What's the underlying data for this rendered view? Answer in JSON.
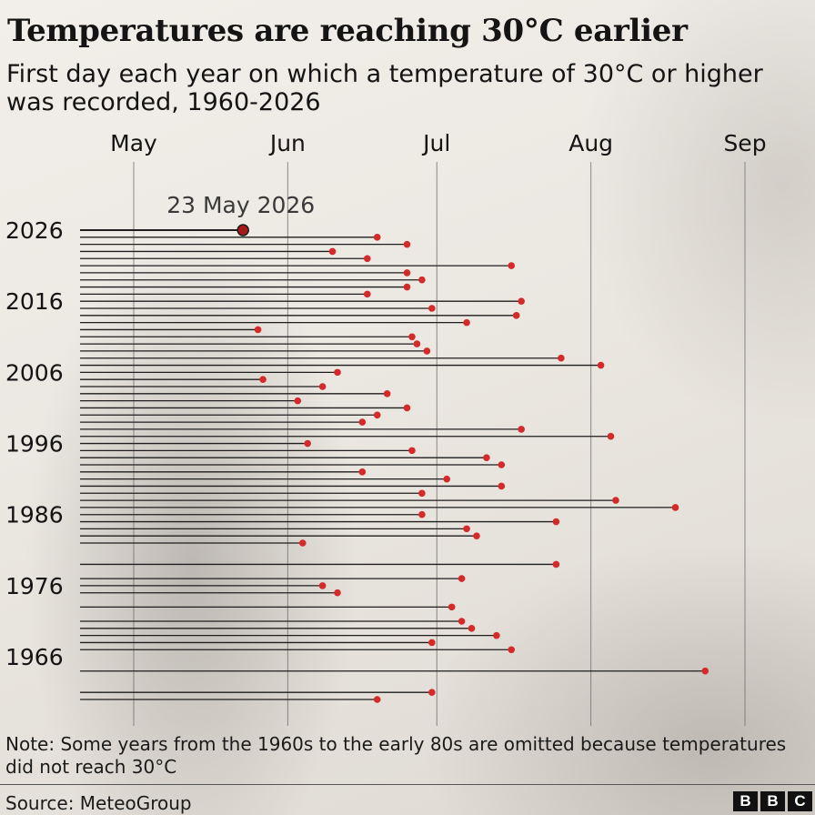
{
  "header": {
    "title": "Temperatures are reaching 30°C earlier",
    "subtitle": "First day each year on which a temperature of 30°C or higher was recorded, 1960-2026"
  },
  "footer": {
    "note": "Note: Some years from the 1960s to the early 80s are omitted because temperatures did not reach 30°C",
    "source": "Source: MeteoGroup",
    "logo_letters": [
      "B",
      "B",
      "C"
    ]
  },
  "chart_data": {
    "type": "lollipop",
    "orientation": "horizontal",
    "x_axis": {
      "type": "date",
      "range": [
        "04-14",
        "09-03"
      ],
      "ticks": [
        {
          "label": "May",
          "date": "05-01"
        },
        {
          "label": "Jun",
          "date": "06-01"
        },
        {
          "label": "Jul",
          "date": "07-01"
        },
        {
          "label": "Aug",
          "date": "08-01"
        },
        {
          "label": "Sep",
          "date": "09-01"
        }
      ]
    },
    "y_axis": {
      "range": [
        1960,
        2026
      ],
      "tick_labels": [
        "2026",
        "2016",
        "2006",
        "1996",
        "1986",
        "1976",
        "1966"
      ]
    },
    "annotation": {
      "label": "23 May 2026",
      "year": 2026,
      "date": "05-23"
    },
    "colors": {
      "dot": "#d42a2a",
      "highlight_dot": "#a31a1a",
      "line": "#1e1e1e",
      "grid": "#6a6a6a"
    },
    "points": [
      {
        "year": 2026,
        "date": "05-23"
      },
      {
        "year": 2025,
        "date": "06-19"
      },
      {
        "year": 2024,
        "date": "06-25"
      },
      {
        "year": 2023,
        "date": "06-10"
      },
      {
        "year": 2022,
        "date": "06-17"
      },
      {
        "year": 2021,
        "date": "07-16"
      },
      {
        "year": 2020,
        "date": "06-25"
      },
      {
        "year": 2019,
        "date": "06-28"
      },
      {
        "year": 2018,
        "date": "06-25"
      },
      {
        "year": 2017,
        "date": "06-17"
      },
      {
        "year": 2016,
        "date": "07-18"
      },
      {
        "year": 2015,
        "date": "06-30"
      },
      {
        "year": 2014,
        "date": "07-17"
      },
      {
        "year": 2013,
        "date": "07-07"
      },
      {
        "year": 2012,
        "date": "05-26"
      },
      {
        "year": 2011,
        "date": "06-26"
      },
      {
        "year": 2010,
        "date": "06-27"
      },
      {
        "year": 2009,
        "date": "06-29"
      },
      {
        "year": 2008,
        "date": "07-26"
      },
      {
        "year": 2007,
        "date": "08-03"
      },
      {
        "year": 2006,
        "date": "06-11"
      },
      {
        "year": 2005,
        "date": "05-27"
      },
      {
        "year": 2004,
        "date": "06-08"
      },
      {
        "year": 2003,
        "date": "06-21"
      },
      {
        "year": 2002,
        "date": "06-03"
      },
      {
        "year": 2001,
        "date": "06-25"
      },
      {
        "year": 2000,
        "date": "06-19"
      },
      {
        "year": 1999,
        "date": "06-16"
      },
      {
        "year": 1998,
        "date": "07-18"
      },
      {
        "year": 1997,
        "date": "08-05"
      },
      {
        "year": 1996,
        "date": "06-05"
      },
      {
        "year": 1995,
        "date": "06-26"
      },
      {
        "year": 1994,
        "date": "07-11"
      },
      {
        "year": 1993,
        "date": "07-14"
      },
      {
        "year": 1992,
        "date": "06-16"
      },
      {
        "year": 1991,
        "date": "07-03"
      },
      {
        "year": 1990,
        "date": "07-14"
      },
      {
        "year": 1989,
        "date": "06-28"
      },
      {
        "year": 1988,
        "date": "08-06"
      },
      {
        "year": 1987,
        "date": "08-18"
      },
      {
        "year": 1986,
        "date": "06-28"
      },
      {
        "year": 1985,
        "date": "07-25"
      },
      {
        "year": 1984,
        "date": "07-07"
      },
      {
        "year": 1983,
        "date": "07-09"
      },
      {
        "year": 1982,
        "date": "06-04"
      },
      {
        "year": 1979,
        "date": "07-25"
      },
      {
        "year": 1977,
        "date": "07-06"
      },
      {
        "year": 1976,
        "date": "06-08"
      },
      {
        "year": 1975,
        "date": "06-11"
      },
      {
        "year": 1973,
        "date": "07-04"
      },
      {
        "year": 1971,
        "date": "07-06"
      },
      {
        "year": 1970,
        "date": "07-08"
      },
      {
        "year": 1969,
        "date": "07-13"
      },
      {
        "year": 1968,
        "date": "06-30"
      },
      {
        "year": 1967,
        "date": "07-16"
      },
      {
        "year": 1964,
        "date": "08-24"
      },
      {
        "year": 1961,
        "date": "06-30"
      },
      {
        "year": 1960,
        "date": "06-19"
      }
    ]
  }
}
